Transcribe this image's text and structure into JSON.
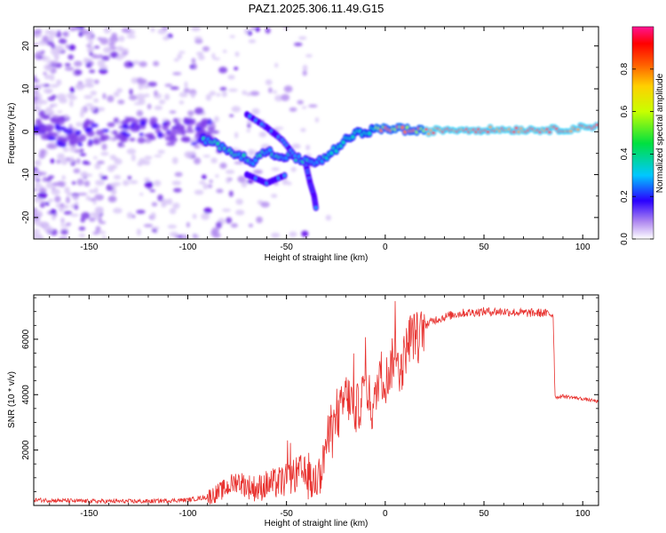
{
  "title": "PAZ1.2025.306.11.49.G15",
  "chart_data": [
    {
      "type": "heatmap",
      "xlabel": "Height of straight line (km)",
      "ylabel": "Frequency (Hz)",
      "xlim": [
        -178,
        108
      ],
      "ylim": [
        -25,
        24.5
      ],
      "x_ticks": [
        -150,
        -100,
        -50,
        0,
        50,
        100
      ],
      "x_tick_labels": [
        "-150",
        "-100",
        "-50",
        "0",
        "50",
        "100"
      ],
      "y_ticks": [
        -20,
        -10,
        0,
        10,
        20
      ],
      "y_tick_labels": [
        "-20",
        "-10",
        "0",
        "10",
        "20"
      ],
      "main_ridge": [
        {
          "x": -92,
          "y": -2
        },
        {
          "x": -85,
          "y": -3
        },
        {
          "x": -78,
          "y": -4.5
        },
        {
          "x": -72,
          "y": -6
        },
        {
          "x": -67,
          "y": -7
        },
        {
          "x": -60,
          "y": -4.5
        },
        {
          "x": -54,
          "y": -5.5
        },
        {
          "x": -48,
          "y": -6
        },
        {
          "x": -42,
          "y": -6.5
        },
        {
          "x": -36,
          "y": -7
        },
        {
          "x": -30,
          "y": -6
        },
        {
          "x": -25,
          "y": -4
        },
        {
          "x": -20,
          "y": -2
        },
        {
          "x": -15,
          "y": -0.5
        },
        {
          "x": -10,
          "y": 0
        },
        {
          "x": -5,
          "y": 0.5
        },
        {
          "x": 0,
          "y": 0.5
        },
        {
          "x": 5,
          "y": 1
        },
        {
          "x": 10,
          "y": 0.5
        },
        {
          "x": 20,
          "y": 0
        },
        {
          "x": 30,
          "y": 0.5
        },
        {
          "x": 40,
          "y": 0.5
        },
        {
          "x": 50,
          "y": 0.5
        },
        {
          "x": 60,
          "y": 0.5
        },
        {
          "x": 70,
          "y": 0.5
        },
        {
          "x": 80,
          "y": 0.5
        },
        {
          "x": 90,
          "y": 0.5
        },
        {
          "x": 100,
          "y": 1
        },
        {
          "x": 108,
          "y": 1.5
        }
      ],
      "colorbar": {
        "label": "Normalized spectral amplitude",
        "range": [
          0,
          1
        ],
        "ticks": [
          0.0,
          0.2,
          0.4,
          0.6,
          0.8
        ],
        "tick_labels": [
          "0.0",
          "0.2",
          "0.4",
          "0.6",
          "0.8"
        ]
      }
    },
    {
      "type": "line",
      "xlabel": "Height of straight line (km)",
      "ylabel": "SNR (10 * v/v)",
      "xlim": [
        -178,
        108
      ],
      "ylim": [
        0,
        7600
      ],
      "x_ticks": [
        -150,
        -100,
        -50,
        0,
        50,
        100
      ],
      "x_tick_labels": [
        "-150",
        "-100",
        "-50",
        "0",
        "50",
        "100"
      ],
      "y_ticks": [
        2000,
        4000,
        6000
      ],
      "y_tick_labels": [
        "2000",
        "4000",
        "6000"
      ],
      "color": "#e8322f",
      "series": [
        {
          "name": "SNR",
          "x": [
            -178,
            -150,
            -120,
            -100,
            -90,
            -85,
            -80,
            -75,
            -70,
            -65,
            -60,
            -55,
            -50,
            -45,
            -42,
            -40,
            -38,
            -35,
            -32,
            -30,
            -27,
            -25,
            -22,
            -20,
            -17,
            -15,
            -12,
            -10,
            -7,
            -5,
            -3,
            0,
            3,
            5,
            8,
            10,
            13,
            15,
            17,
            20,
            25,
            30,
            35,
            40,
            50,
            60,
            70,
            80,
            84,
            85,
            86,
            87,
            90,
            100,
            108
          ],
          "y": [
            200,
            150,
            150,
            200,
            300,
            450,
            650,
            900,
            700,
            600,
            750,
            800,
            900,
            1100,
            1200,
            1000,
            800,
            900,
            1300,
            2300,
            2500,
            3000,
            3500,
            4000,
            3700,
            3400,
            3800,
            4600,
            3500,
            3700,
            4900,
            4500,
            5000,
            5600,
            4800,
            5500,
            6200,
            6100,
            6000,
            6500,
            6700,
            6800,
            6900,
            6950,
            7000,
            7000,
            6950,
            6950,
            6900,
            6900,
            3950,
            3900,
            3950,
            3850,
            3750
          ]
        }
      ]
    }
  ]
}
